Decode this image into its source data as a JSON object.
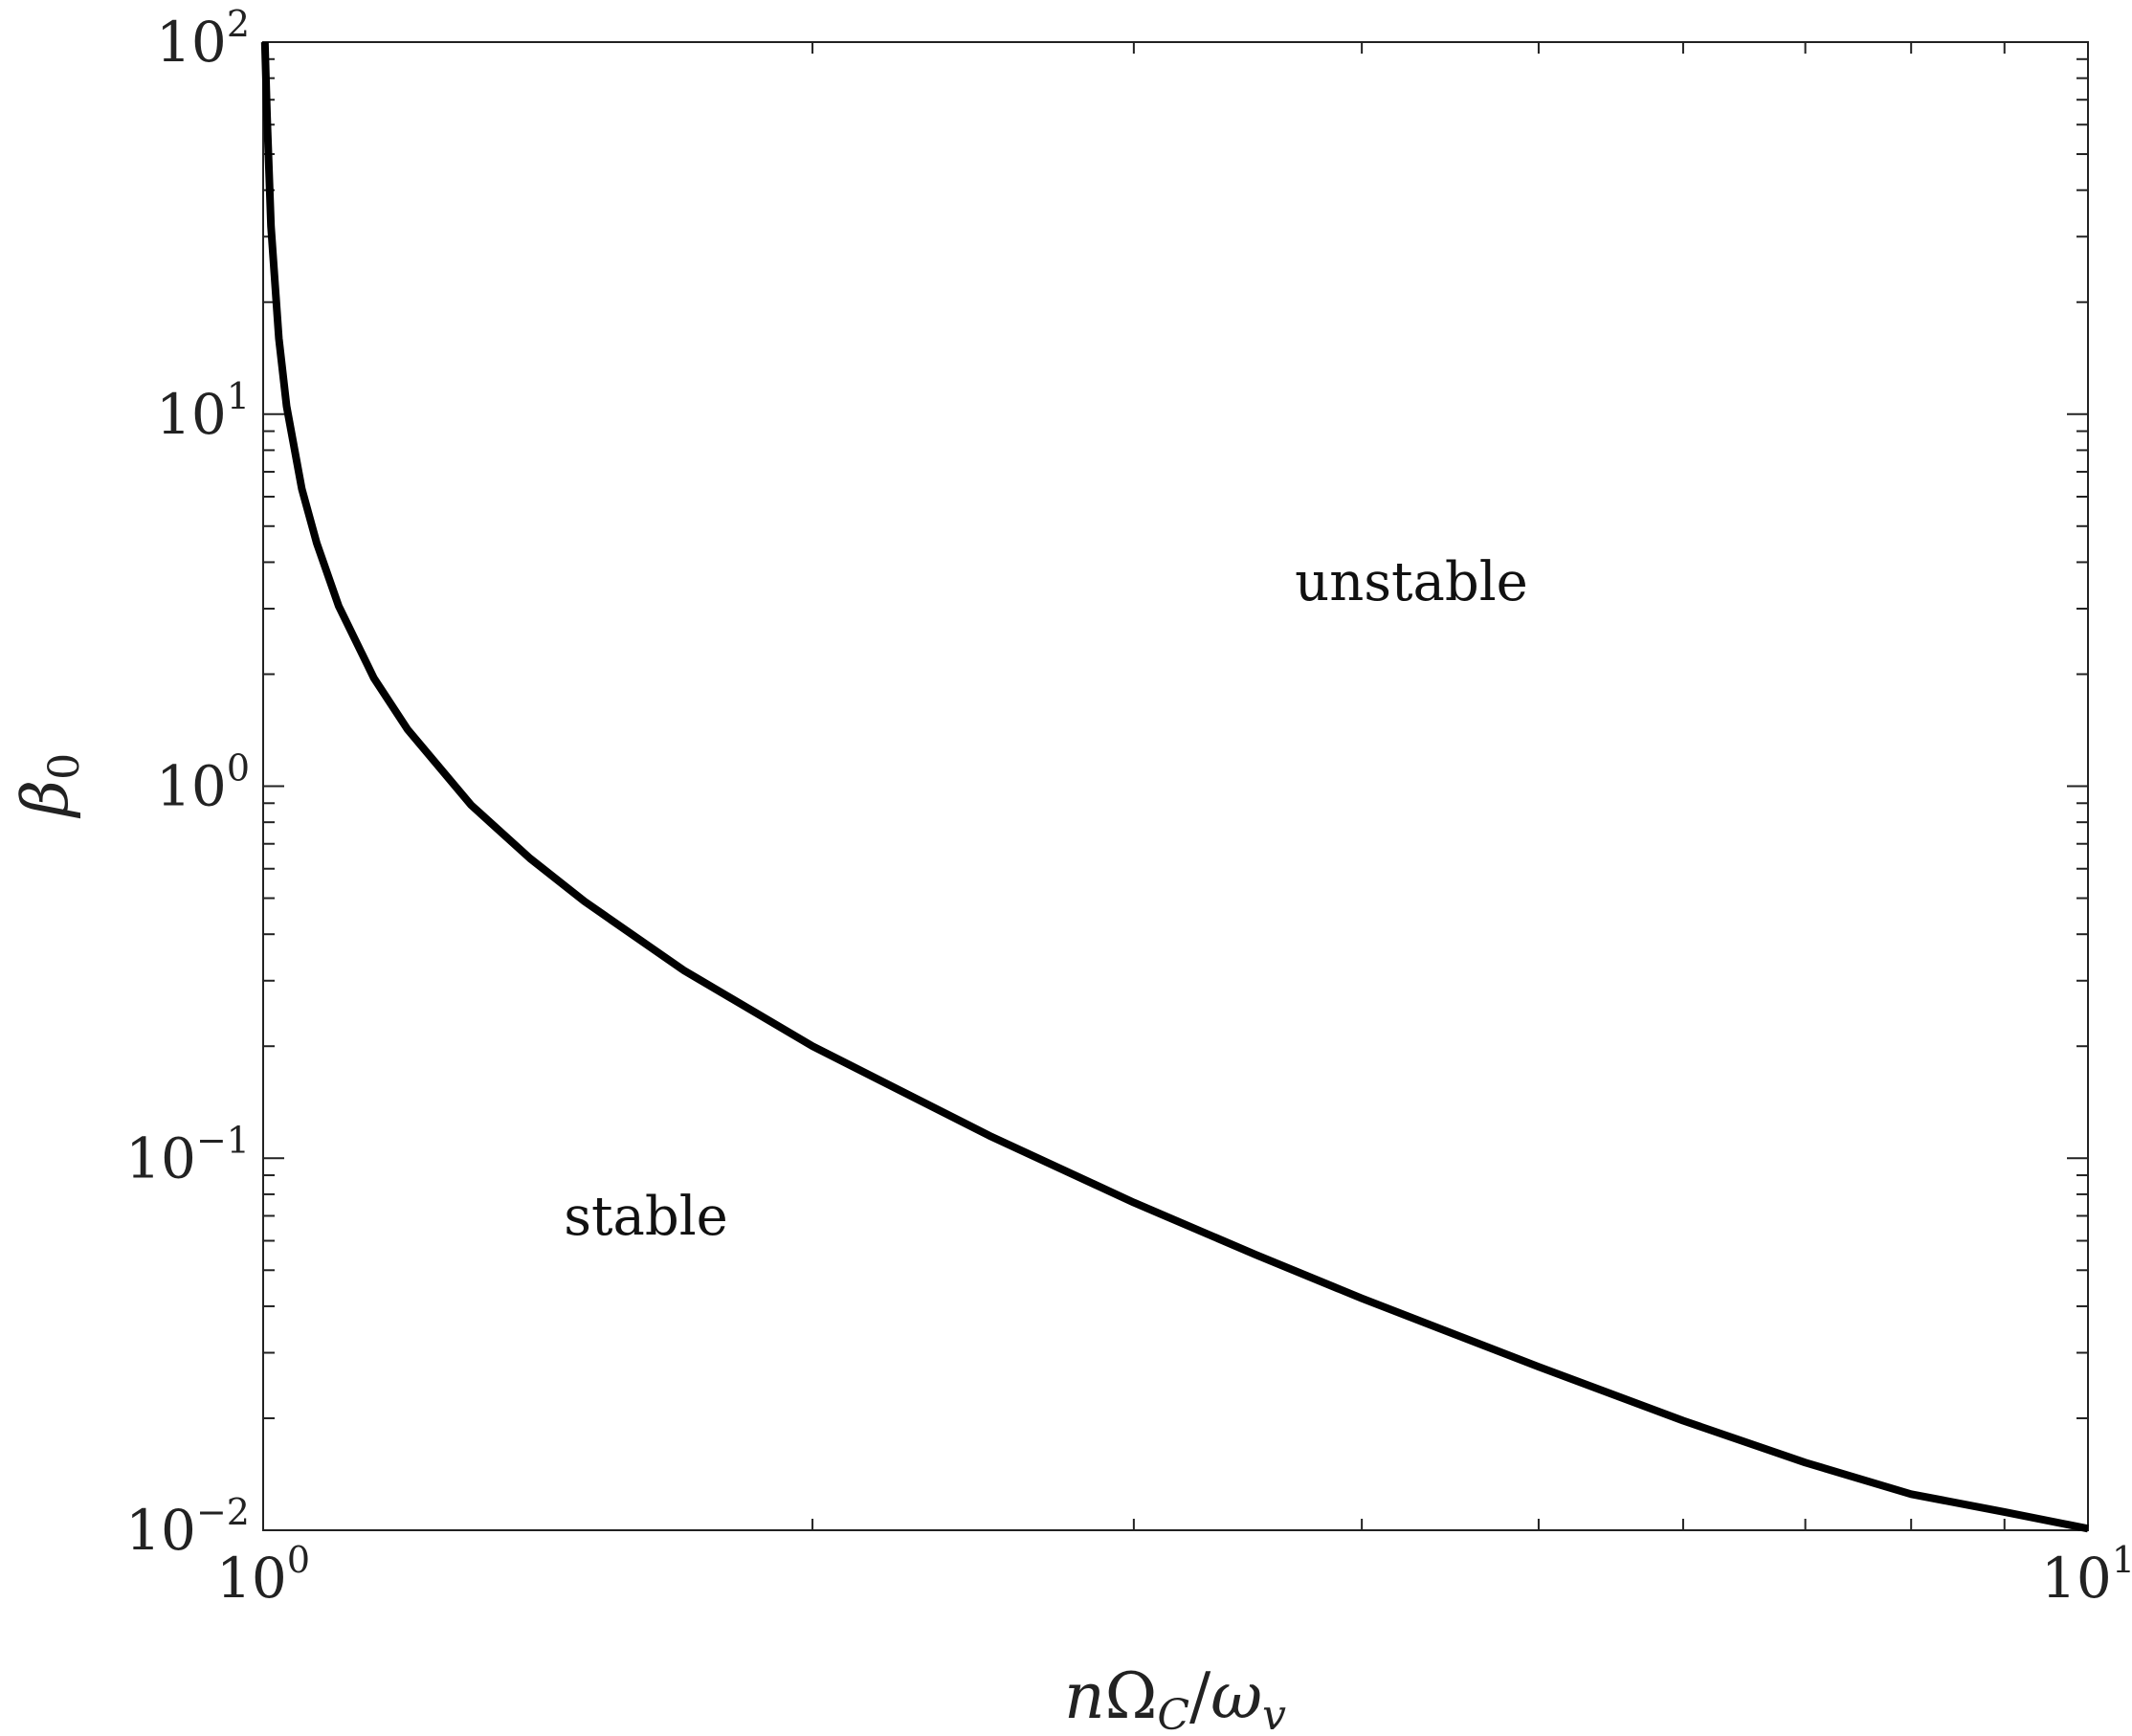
{
  "chart_data": {
    "type": "line",
    "title": "",
    "xlabel": "nΩ_C/ω_v",
    "xlabel_parts": {
      "n": "n",
      "omega_cap": "Ω",
      "sub_c": "C",
      "slash": "/",
      "omega": "ω",
      "sub_v": "v"
    },
    "ylabel": "β_0",
    "ylabel_parts": {
      "beta": "β",
      "sub_0": "0"
    },
    "xscale": "log",
    "yscale": "log",
    "xlim": [
      1,
      10
    ],
    "ylim": [
      0.01,
      100
    ],
    "grid": false,
    "x_ticks": [
      {
        "base": "10",
        "exp": "0",
        "value": 1
      },
      {
        "base": "10",
        "exp": "1",
        "value": 10
      }
    ],
    "y_ticks": [
      {
        "base": "10",
        "exp": "−2",
        "value": 0.01
      },
      {
        "base": "10",
        "exp": "−1",
        "value": 0.1
      },
      {
        "base": "10",
        "exp": "0",
        "value": 1
      },
      {
        "base": "10",
        "exp": "1",
        "value": 10
      },
      {
        "base": "10",
        "exp": "2",
        "value": 100
      }
    ],
    "series": [
      {
        "color": "#000000",
        "x": [
          1.0022,
          1.005,
          1.01,
          1.02,
          1.03,
          1.05,
          1.07,
          1.1,
          1.15,
          1.2,
          1.3,
          1.4,
          1.5,
          1.7,
          2.0,
          2.5,
          3.0,
          3.5,
          4.0,
          5.0,
          6.0,
          7.0,
          8.0,
          9.0,
          10.0
        ],
        "y": [
          100,
          63,
          32,
          16,
          10.5,
          6.3,
          4.5,
          3.05,
          1.95,
          1.42,
          0.89,
          0.64,
          0.49,
          0.32,
          0.2,
          0.115,
          0.076,
          0.055,
          0.042,
          0.0275,
          0.0197,
          0.0152,
          0.0125,
          0.0112,
          0.0101
        ]
      }
    ],
    "annotations": [
      {
        "text": "unstable",
        "x": 4.2,
        "y": 4.0
      },
      {
        "text": "stable",
        "x": 1.4,
        "y": 0.07
      }
    ]
  }
}
